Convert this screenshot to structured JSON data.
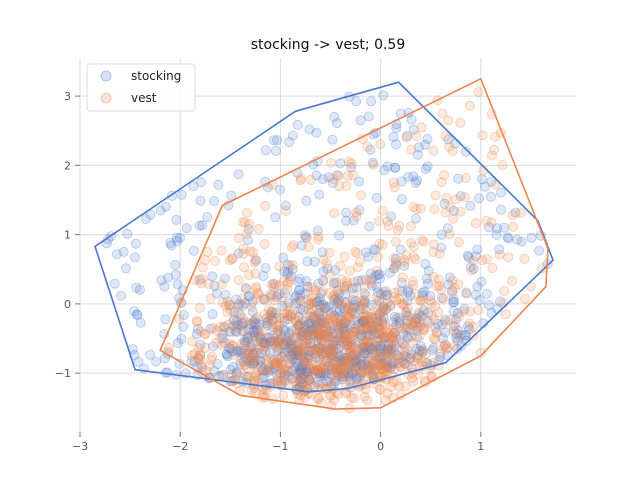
{
  "chart_data": {
    "type": "scatter",
    "title": "stocking -> vest; 0.59",
    "xlabel": "",
    "ylabel": "",
    "xlim": [
      -3.0,
      1.95
    ],
    "ylim": [
      -1.85,
      3.55
    ],
    "xticks": [
      -3,
      -2,
      -1,
      0,
      1
    ],
    "yticks": [
      -1,
      0,
      1,
      2,
      3
    ],
    "xtick_labels": [
      "−3",
      "−2",
      "−1",
      "0",
      "1"
    ],
    "ytick_labels": [
      "−1",
      "0",
      "1",
      "2",
      "3"
    ],
    "grid": true,
    "legend_position": "top-left",
    "series": [
      {
        "name": "stocking",
        "color": "#4878cf",
        "point_count": 900,
        "center": [
          -0.55,
          -0.35
        ],
        "hull": [
          [
            -2.85,
            0.83
          ],
          [
            -2.45,
            -0.95
          ],
          [
            -0.72,
            -1.27
          ],
          [
            -0.32,
            -1.22
          ],
          [
            0.65,
            -0.85
          ],
          [
            1.72,
            0.63
          ],
          [
            1.57,
            1.2
          ],
          [
            0.18,
            3.2
          ],
          [
            -0.85,
            2.78
          ]
        ]
      },
      {
        "name": "vest",
        "color": "#ee854a",
        "point_count": 900,
        "center": [
          -0.5,
          -0.35
        ],
        "hull": [
          [
            -2.2,
            -0.67
          ],
          [
            -1.4,
            -1.32
          ],
          [
            -0.45,
            -1.52
          ],
          [
            0.0,
            -1.5
          ],
          [
            1.0,
            -0.75
          ],
          [
            1.65,
            0.25
          ],
          [
            1.67,
            0.8
          ],
          [
            1.0,
            3.25
          ],
          [
            -1.58,
            1.42
          ]
        ]
      }
    ]
  }
}
